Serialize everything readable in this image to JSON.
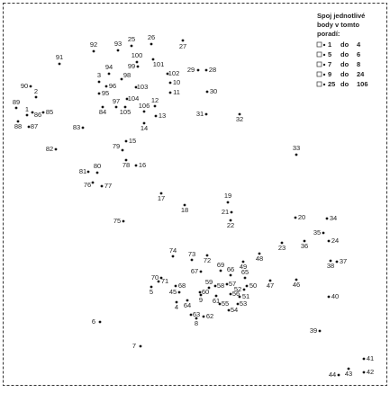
{
  "instructions": {
    "lines": [
      "Spoj jednotlivé",
      "body v tomto",
      "poradí:"
    ],
    "connector": "do",
    "ranges": [
      {
        "from": "1",
        "to": "4"
      },
      {
        "from": "5",
        "to": "6"
      },
      {
        "from": "7",
        "to": "8"
      },
      {
        "from": "9",
        "to": "24"
      },
      {
        "from": "25",
        "to": "106"
      }
    ]
  },
  "dots": [
    {
      "label": "92"
    },
    {
      "label": "93"
    },
    {
      "label": "25"
    },
    {
      "label": "26"
    },
    {
      "label": "27"
    },
    {
      "label": "91"
    },
    {
      "label": "100"
    },
    {
      "label": "101"
    },
    {
      "label": "94"
    },
    {
      "label": "99"
    },
    {
      "label": "102"
    },
    {
      "label": "29"
    },
    {
      "label": "28"
    },
    {
      "label": "3"
    },
    {
      "label": "98"
    },
    {
      "label": "96"
    },
    {
      "label": "10"
    },
    {
      "label": "103"
    },
    {
      "label": "11"
    },
    {
      "label": "30"
    },
    {
      "label": "90"
    },
    {
      "label": "2"
    },
    {
      "label": "95"
    },
    {
      "label": "104"
    },
    {
      "label": "12"
    },
    {
      "label": "89"
    },
    {
      "label": "1"
    },
    {
      "label": "97"
    },
    {
      "label": "106"
    },
    {
      "label": "86"
    },
    {
      "label": "85"
    },
    {
      "label": "84"
    },
    {
      "label": "105"
    },
    {
      "label": "13"
    },
    {
      "label": "88"
    },
    {
      "label": "87"
    },
    {
      "label": "83"
    },
    {
      "label": "14"
    },
    {
      "label": "31"
    },
    {
      "label": "32"
    },
    {
      "label": "15"
    },
    {
      "label": "82"
    },
    {
      "label": "79"
    },
    {
      "label": "33"
    },
    {
      "label": "80"
    },
    {
      "label": "81"
    },
    {
      "label": "78"
    },
    {
      "label": "16"
    },
    {
      "label": "76"
    },
    {
      "label": "77"
    },
    {
      "label": "17"
    },
    {
      "label": "19"
    },
    {
      "label": "18"
    },
    {
      "label": "21"
    },
    {
      "label": "22"
    },
    {
      "label": "75"
    },
    {
      "label": "20"
    },
    {
      "label": "34"
    },
    {
      "label": "35"
    },
    {
      "label": "24"
    },
    {
      "label": "23"
    },
    {
      "label": "36"
    },
    {
      "label": "37"
    },
    {
      "label": "38"
    },
    {
      "label": "74"
    },
    {
      "label": "73"
    },
    {
      "label": "72"
    },
    {
      "label": "48"
    },
    {
      "label": "49"
    },
    {
      "label": "69"
    },
    {
      "label": "70"
    },
    {
      "label": "67"
    },
    {
      "label": "66"
    },
    {
      "label": "65"
    },
    {
      "label": "71"
    },
    {
      "label": "68"
    },
    {
      "label": "64"
    },
    {
      "label": "63"
    },
    {
      "label": "62"
    },
    {
      "label": "61"
    },
    {
      "label": "60"
    },
    {
      "label": "59"
    },
    {
      "label": "58"
    },
    {
      "label": "57"
    },
    {
      "label": "56"
    },
    {
      "label": "55"
    },
    {
      "label": "54"
    },
    {
      "label": "53"
    },
    {
      "label": "52"
    },
    {
      "label": "51"
    },
    {
      "label": "50"
    },
    {
      "label": "47"
    },
    {
      "label": "46"
    },
    {
      "label": "40"
    },
    {
      "label": "6"
    },
    {
      "label": "39"
    },
    {
      "label": "7"
    },
    {
      "label": "41"
    },
    {
      "label": "42"
    },
    {
      "label": "43"
    },
    {
      "label": "44"
    },
    {
      "label": "45"
    },
    {
      "label": "5"
    },
    {
      "label": "8"
    },
    {
      "label": "4"
    },
    {
      "label": "9"
    }
  ]
}
